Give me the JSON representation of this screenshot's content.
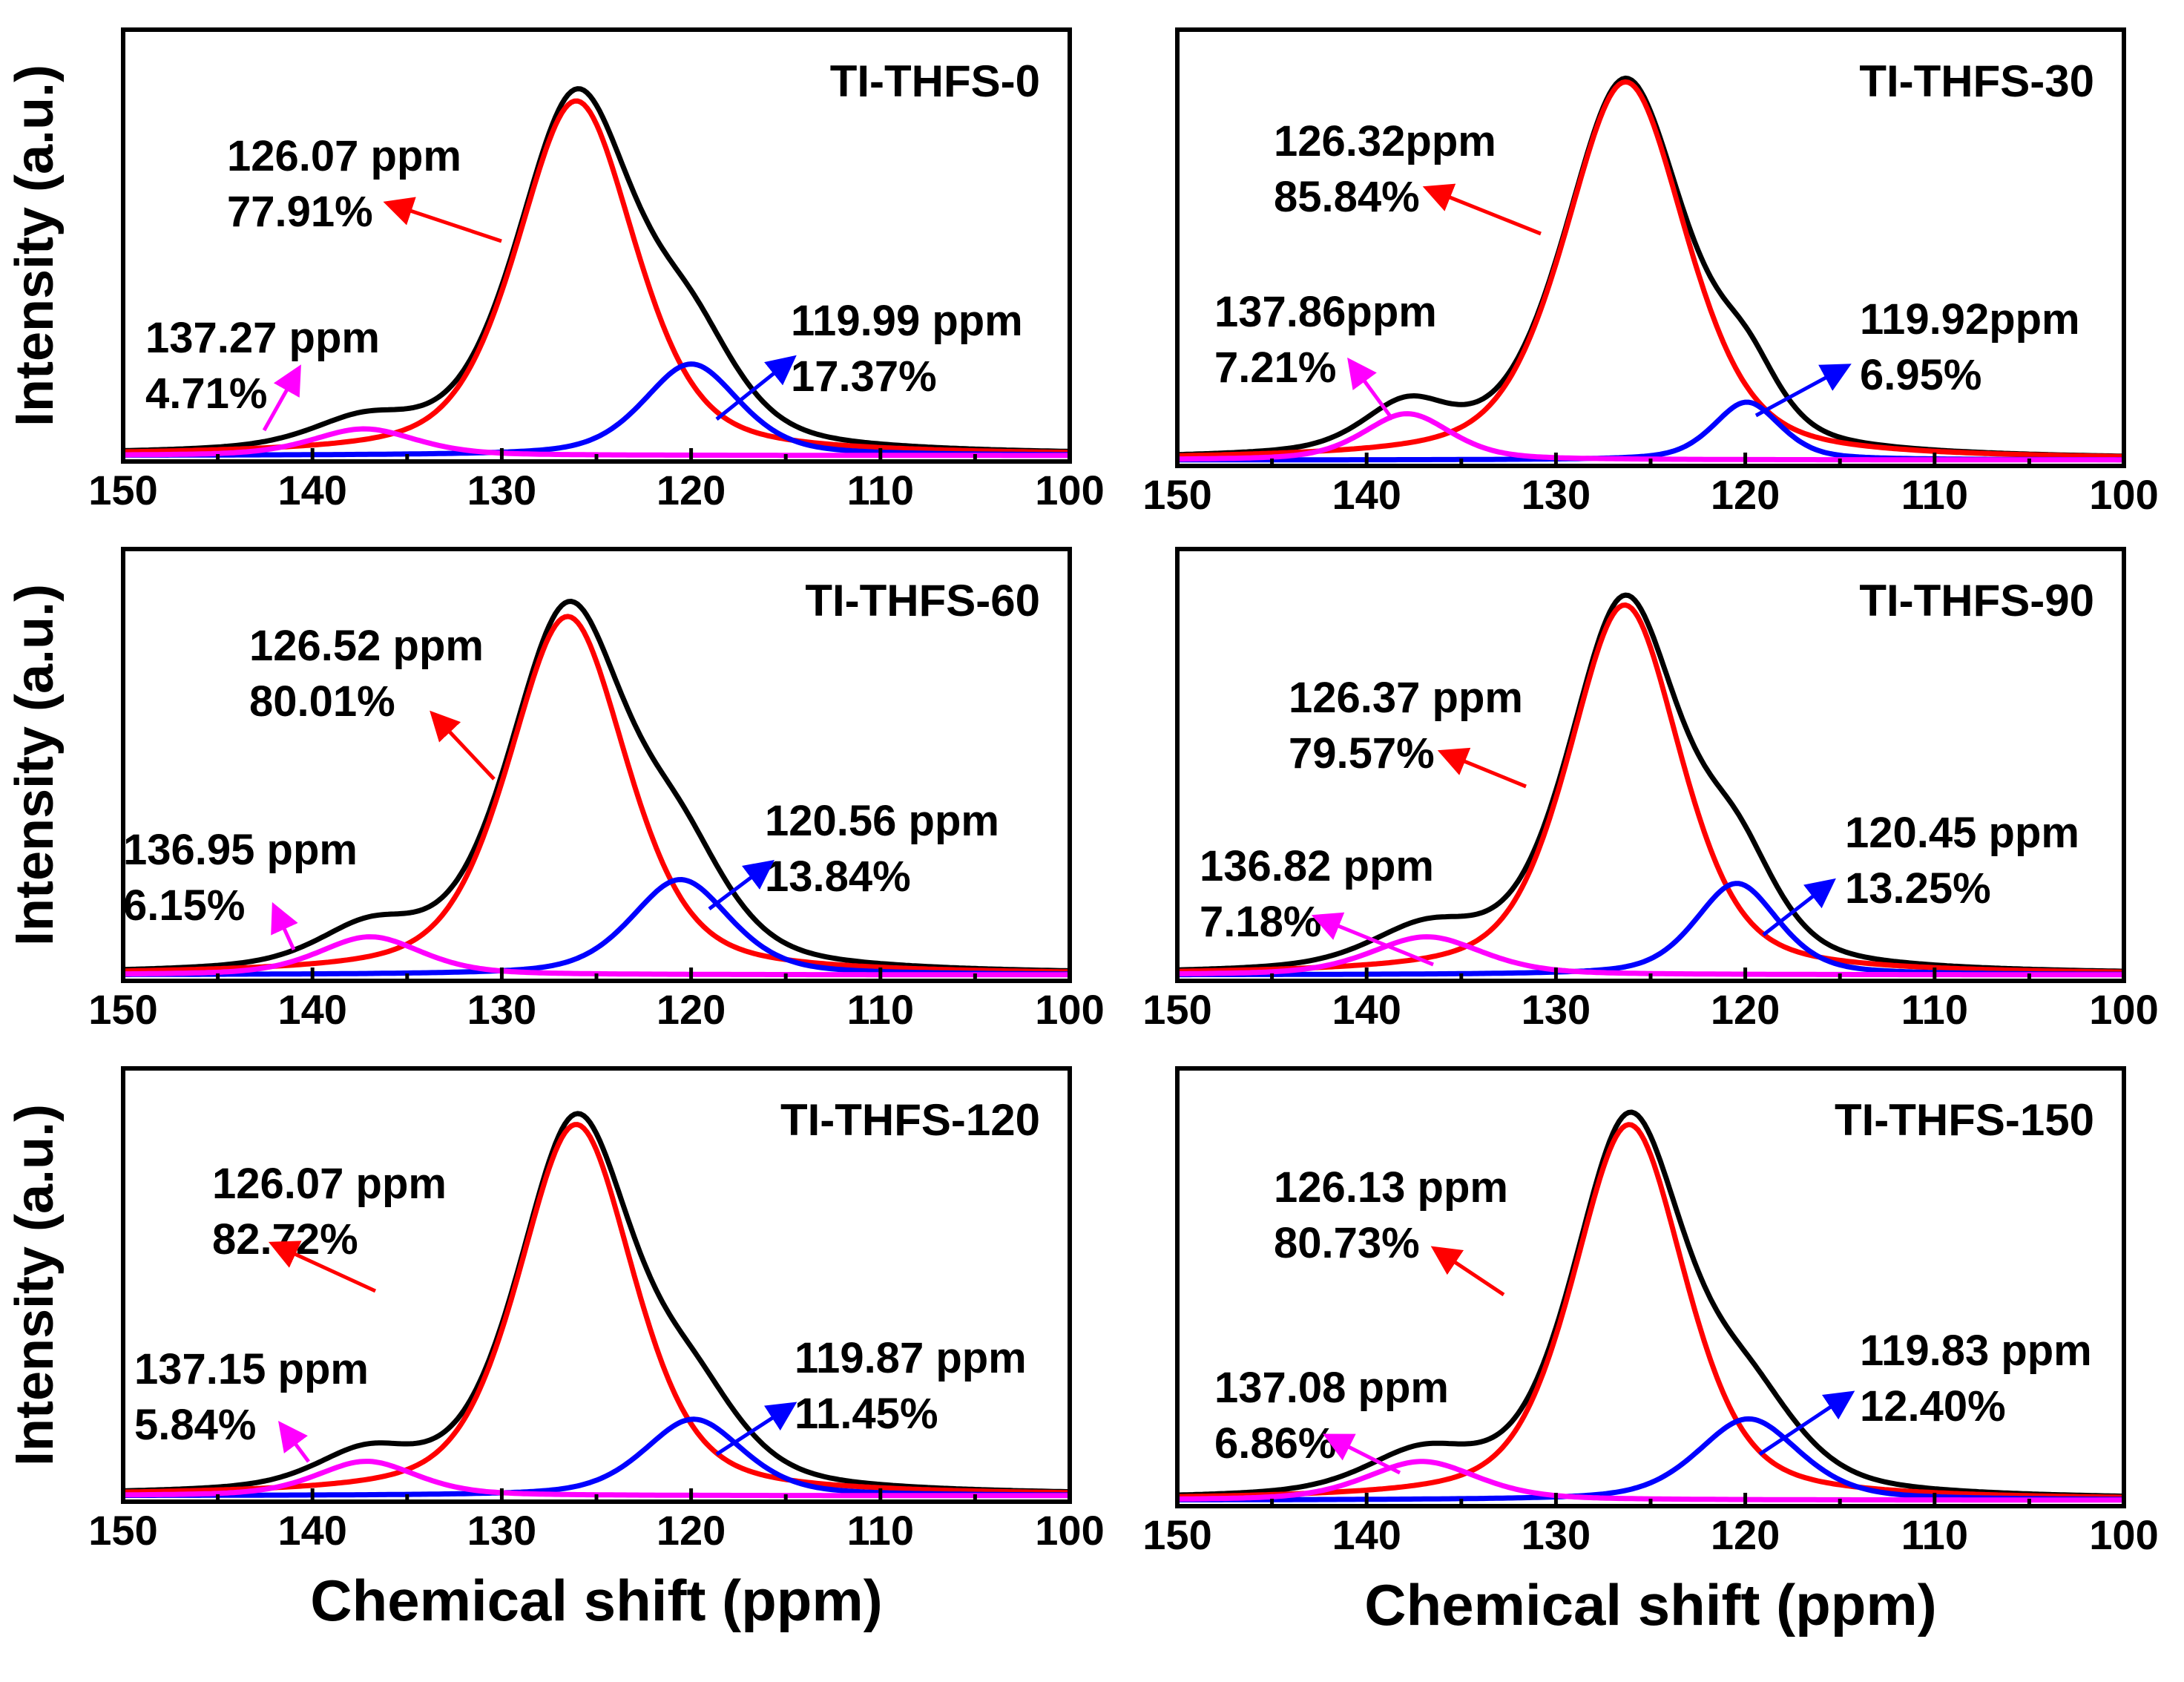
{
  "chart_data": [
    {
      "type": "line",
      "title": "TI-THFS-0",
      "xlabel": "",
      "ylabel": "Intensity (a.u.)",
      "xlim": [
        150,
        100
      ],
      "xticks": [
        "150",
        "140",
        "130",
        "120",
        "110",
        "100"
      ],
      "ylim": [
        0,
        1.0
      ],
      "series": [
        {
          "name": "Envelope",
          "color": "#000000",
          "role": "total"
        },
        {
          "name": "126.07 ppm",
          "center": 126.07,
          "width": 7.4,
          "amplitude": 0.93,
          "color": "#ff0000"
        },
        {
          "name": "137.27 ppm",
          "center": 137.27,
          "width": 6.5,
          "amplitude": 0.07,
          "color": "#ff00ff"
        },
        {
          "name": "119.99 ppm",
          "center": 119.99,
          "width": 6.0,
          "amplitude": 0.24,
          "color": "#0000ff"
        }
      ],
      "annotations": [
        {
          "ppm": "126.07 ppm",
          "pct": "77.91%",
          "color": "#ff0000"
        },
        {
          "ppm": "137.27 ppm",
          "pct": "4.71%",
          "color": "#ff00ff"
        },
        {
          "ppm": "119.99 ppm",
          "pct": "17.37%",
          "color": "#0000ff"
        }
      ]
    },
    {
      "type": "line",
      "title": "TI-THFS-30",
      "xlabel": "",
      "ylabel": "",
      "xlim": [
        150,
        100
      ],
      "xticks": [
        "150",
        "140",
        "130",
        "120",
        "110",
        "100"
      ],
      "ylim": [
        0,
        1.0
      ],
      "series": [
        {
          "name": "Envelope",
          "color": "#000000",
          "role": "total"
        },
        {
          "name": "126.32ppm",
          "center": 126.32,
          "width": 7.6,
          "amplitude": 0.98,
          "color": "#ff0000"
        },
        {
          "name": "137.86ppm",
          "center": 137.86,
          "width": 5.5,
          "amplitude": 0.12,
          "color": "#ff00ff"
        },
        {
          "name": "119.92ppm",
          "center": 119.92,
          "width": 4.2,
          "amplitude": 0.15,
          "color": "#0000ff"
        }
      ],
      "annotations": [
        {
          "ppm": "126.32ppm",
          "pct": "85.84%",
          "color": "#ff0000"
        },
        {
          "ppm": "137.86ppm",
          "pct": "7.21%",
          "color": "#ff00ff"
        },
        {
          "ppm": "119.92ppm",
          "pct": "6.95%",
          "color": "#0000ff"
        }
      ]
    },
    {
      "type": "line",
      "title": "TI-THFS-60",
      "xlabel": "",
      "ylabel": "Intensity (a.u.)",
      "xlim": [
        150,
        100
      ],
      "xticks": [
        "150",
        "140",
        "130",
        "120",
        "110",
        "100"
      ],
      "ylim": [
        0,
        1.0
      ],
      "series": [
        {
          "name": "Envelope",
          "color": "#000000",
          "role": "total"
        },
        {
          "name": "126.52 ppm",
          "center": 126.52,
          "width": 7.4,
          "amplitude": 0.94,
          "color": "#ff0000"
        },
        {
          "name": "136.95 ppm",
          "center": 136.95,
          "width": 6.5,
          "amplitude": 0.1,
          "color": "#ff00ff"
        },
        {
          "name": "120.56 ppm",
          "center": 120.56,
          "width": 6.2,
          "amplitude": 0.25,
          "color": "#0000ff"
        }
      ],
      "annotations": [
        {
          "ppm": "126.52 ppm",
          "pct": "80.01%",
          "color": "#ff0000"
        },
        {
          "ppm": "136.95 ppm",
          "pct": "6.15%",
          "color": "#ff00ff"
        },
        {
          "ppm": "120.56 ppm",
          "pct": "13.84%",
          "color": "#0000ff"
        }
      ]
    },
    {
      "type": "line",
      "title": "TI-THFS-90",
      "xlabel": "",
      "ylabel": "",
      "xlim": [
        150,
        100
      ],
      "xticks": [
        "150",
        "140",
        "130",
        "120",
        "110",
        "100"
      ],
      "ylim": [
        0,
        1.0
      ],
      "series": [
        {
          "name": "Envelope",
          "color": "#000000",
          "role": "total"
        },
        {
          "name": "126.37 ppm",
          "center": 126.37,
          "width": 7.0,
          "amplitude": 0.97,
          "color": "#ff0000"
        },
        {
          "name": "136.82 ppm",
          "center": 136.82,
          "width": 7.0,
          "amplitude": 0.1,
          "color": "#ff00ff"
        },
        {
          "name": "120.45 ppm",
          "center": 120.45,
          "width": 5.2,
          "amplitude": 0.24,
          "color": "#0000ff"
        }
      ],
      "annotations": [
        {
          "ppm": "126.37 ppm",
          "pct": "79.57%",
          "color": "#ff0000"
        },
        {
          "ppm": "136.82 ppm",
          "pct": "7.18%",
          "color": "#ff00ff"
        },
        {
          "ppm": "120.45 ppm",
          "pct": "13.25%",
          "color": "#0000ff"
        }
      ]
    },
    {
      "type": "line",
      "title": "TI-THFS-120",
      "xlabel": "Chemical shift (ppm)",
      "ylabel": "Intensity (a.u.)",
      "xlim": [
        150,
        100
      ],
      "xticks": [
        "150",
        "140",
        "130",
        "120",
        "110",
        "100"
      ],
      "ylim": [
        0,
        1.0
      ],
      "series": [
        {
          "name": "Envelope",
          "color": "#000000",
          "role": "total"
        },
        {
          "name": "126.07 ppm",
          "center": 126.07,
          "width": 7.2,
          "amplitude": 0.97,
          "color": "#ff0000"
        },
        {
          "name": "137.15 ppm",
          "center": 137.15,
          "width": 6.3,
          "amplitude": 0.09,
          "color": "#ff00ff"
        },
        {
          "name": "119.87 ppm",
          "center": 119.87,
          "width": 6.2,
          "amplitude": 0.2,
          "color": "#0000ff"
        }
      ],
      "annotations": [
        {
          "ppm": "126.07 ppm",
          "pct": "82.72%",
          "color": "#ff0000"
        },
        {
          "ppm": "137.15 ppm",
          "pct": "5.84%",
          "color": "#ff00ff"
        },
        {
          "ppm": "119.87 ppm",
          "pct": "11.45%",
          "color": "#0000ff"
        }
      ]
    },
    {
      "type": "line",
      "title": "TI-THFS-150",
      "xlabel": "Chemical shift (ppm)",
      "ylabel": "",
      "xlim": [
        150,
        100
      ],
      "xticks": [
        "150",
        "140",
        "130",
        "120",
        "110",
        "100"
      ],
      "ylim": [
        0,
        1.0
      ],
      "series": [
        {
          "name": "Envelope",
          "color": "#000000",
          "role": "total"
        },
        {
          "name": "126.13 ppm",
          "center": 126.13,
          "width": 7.0,
          "amplitude": 0.97,
          "color": "#ff0000"
        },
        {
          "name": "137.08 ppm",
          "center": 137.08,
          "width": 7.0,
          "amplitude": 0.1,
          "color": "#ff00ff"
        },
        {
          "name": "119.83 ppm",
          "center": 119.83,
          "width": 6.4,
          "amplitude": 0.21,
          "color": "#0000ff"
        }
      ],
      "annotations": [
        {
          "ppm": "126.13 ppm",
          "pct": "80.73%",
          "color": "#ff0000"
        },
        {
          "ppm": "137.08 ppm",
          "pct": "6.86%",
          "color": "#ff00ff"
        },
        {
          "ppm": "119.83 ppm",
          "pct": "12.40%",
          "color": "#0000ff"
        }
      ]
    }
  ]
}
